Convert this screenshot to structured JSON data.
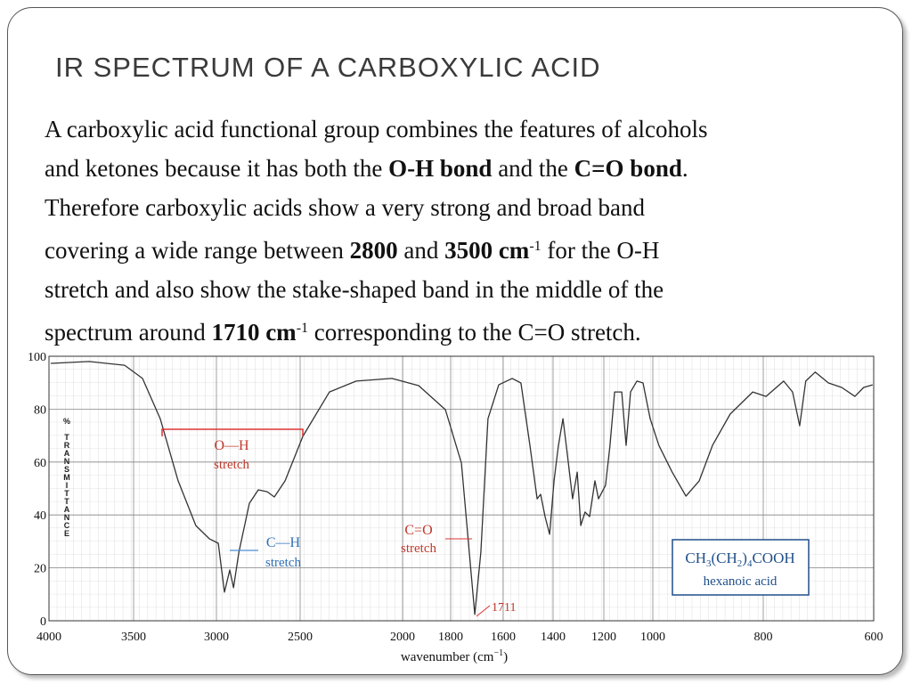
{
  "slide": {
    "title": "IR SPECTRUM OF A CARBOXYLIC ACID",
    "paragraph": [
      [
        {
          "text": "A carboxylic acid functional group combines the features of alcohols"
        }
      ],
      [
        {
          "text": "and ketones because it has both the "
        },
        {
          "text": "O-H bond",
          "style": "bold"
        },
        {
          "text": " and the "
        },
        {
          "text": "C=O bond",
          "style": "bold"
        },
        {
          "text": "."
        }
      ],
      [
        {
          "text": "Therefore carboxylic acids show a very strong and broad band"
        }
      ],
      [
        {
          "text": "covering a wide range between "
        },
        {
          "text": "2800",
          "style": "bold"
        },
        {
          "text": " and "
        },
        {
          "text": "3500 cm",
          "style": "bold"
        },
        {
          "text": "-1",
          "style": "sup"
        },
        {
          "text": " for the O-H"
        }
      ],
      [
        {
          "text": "stretch and also show the stake-shaped band in the middle of the"
        }
      ],
      [
        {
          "text": "spectrum around "
        },
        {
          "text": "1710 cm",
          "style": "bold"
        },
        {
          "text": "-1",
          "style": "sup"
        },
        {
          "text": " corresponding to the C=O stretch."
        }
      ]
    ]
  },
  "chart_data": {
    "type": "line",
    "y_label": "% TRANSMITTANCE",
    "x_label": [
      "wavenumber (cm",
      "−1",
      ")"
    ],
    "annotations": [
      "O—H",
      "stretch",
      "C—H",
      "stretch",
      "C=O",
      "stretch",
      "1711"
    ],
    "legend_box": {
      "formula": [
        "CH",
        "3",
        "(CH",
        "2",
        ")",
        "4",
        "COOH"
      ],
      "name": "hexanoic acid"
    },
    "xlim": [
      4000,
      600
    ],
    "xticks": [
      4000,
      3500,
      3000,
      2500,
      2000,
      1800,
      1600,
      1400,
      1200,
      1000,
      800,
      600
    ],
    "ylim": [
      0,
      100
    ],
    "yticks": [
      0,
      20,
      40,
      60,
      80,
      100
    ],
    "grid": true,
    "color": "#333333",
    "x": [
      3990,
      3763,
      3553,
      3446,
      3339,
      3231,
      3124,
      3043,
      2989,
      2952,
      2920,
      2898,
      2866,
      2803,
      2750,
      2697,
      2654,
      2590,
      2487,
      2357,
      2226,
      2052,
      1933,
      1822,
      1759,
      1729,
      1708,
      1685,
      1658,
      1617,
      1564,
      1529,
      1493,
      1464,
      1450,
      1432,
      1414,
      1396,
      1379,
      1361,
      1344,
      1323,
      1305,
      1291,
      1274,
      1256,
      1235,
      1221,
      1193,
      1175,
      1156,
      1127,
      1109,
      1091,
      1065,
      1040,
      1011,
      989,
      965,
      940,
      916,
      892,
      860,
      819,
      795,
      763,
      747,
      734,
      723,
      706,
      682,
      658,
      634,
      618,
      602
    ],
    "values": [
      97.3,
      98,
      96.6,
      91.6,
      76.4,
      52.9,
      36,
      31,
      29.3,
      10.8,
      19.2,
      12.5,
      25.9,
      44.4,
      49.5,
      48.8,
      46.8,
      52.9,
      69.7,
      86.5,
      90.6,
      91.6,
      88.9,
      79.8,
      59.6,
      25.9,
      2.4,
      25.9,
      76.4,
      89.2,
      91.6,
      89.9,
      66.3,
      46.1,
      47.8,
      39.4,
      32.7,
      52.9,
      66.3,
      76.4,
      63,
      46.1,
      56.2,
      36,
      41.1,
      39.4,
      52.9,
      46.1,
      51.2,
      66.3,
      86.5,
      86.5,
      66.3,
      86.5,
      90.6,
      89.9,
      76.4,
      66.3,
      56.2,
      47.1,
      52.9,
      66.3,
      78.1,
      86.5,
      84.8,
      90.6,
      86.5,
      73.7,
      90.6,
      94,
      89.9,
      88.2,
      84.8,
      88.2,
      89.2
    ]
  }
}
